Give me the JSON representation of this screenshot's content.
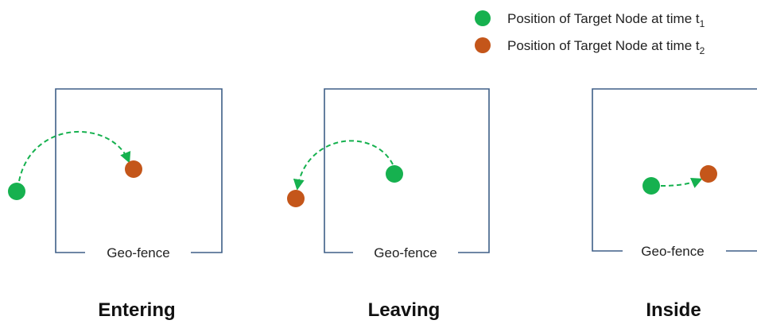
{
  "legend": {
    "t1": {
      "prefix": "Position  of Target Node at time t",
      "sub": "1"
    },
    "t2": {
      "prefix": "Position  of Target Node at time t",
      "sub": "2"
    }
  },
  "colors": {
    "t1": "#16b14f",
    "t2": "#c4561a",
    "fence": "#3e5f87",
    "arrow": "#16b14f"
  },
  "fence_label": "Geo-fence",
  "scenarios": [
    {
      "title": "Entering"
    },
    {
      "title": "Leaving"
    },
    {
      "title": "Inside"
    }
  ]
}
